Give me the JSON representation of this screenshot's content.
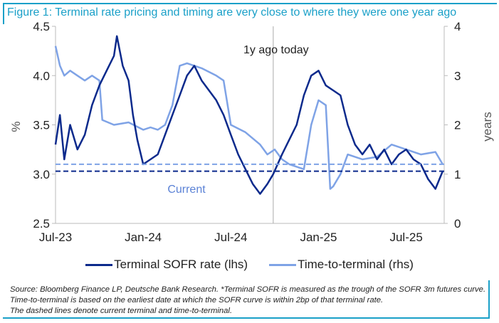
{
  "title": "Figure 1: Terminal rate pricing and timing are very close to where they were one year ago",
  "chart_data": {
    "type": "line",
    "title": "Figure 1: Terminal rate pricing and timing are very close to where they were one year ago",
    "x_unit": "months since Jul-23",
    "xticks": [
      {
        "t": 0,
        "label": "Jul-23"
      },
      {
        "t": 6,
        "label": "Jan-24"
      },
      {
        "t": 12,
        "label": "Jul-24"
      },
      {
        "t": 18,
        "label": "Jan-25"
      },
      {
        "t": 24,
        "label": "Jul-25"
      }
    ],
    "xlim": [
      0,
      26.6
    ],
    "ylabel_left": "%",
    "ylim_left": [
      2.5,
      4.5
    ],
    "yticks_left": [
      "2.5",
      "3.0",
      "3.5",
      "4.0",
      "4.5"
    ],
    "ylabel_right": "years",
    "ylim_right": [
      0,
      4
    ],
    "yticks_right": [
      "0",
      "1",
      "2",
      "3",
      "4"
    ],
    "annotations": {
      "vline_t": 14.9,
      "vline_label": "1y ago today",
      "current_label": "Current"
    },
    "series": [
      {
        "name": "Terminal SOFR rate (lhs)",
        "axis": "left",
        "color": "#0c2a8c",
        "current": 3.03,
        "points": [
          [
            0,
            3.3
          ],
          [
            0.3,
            3.6
          ],
          [
            0.6,
            3.15
          ],
          [
            1,
            3.5
          ],
          [
            1.5,
            3.25
          ],
          [
            2,
            3.4
          ],
          [
            2.5,
            3.7
          ],
          [
            3,
            3.9
          ],
          [
            3.5,
            4.05
          ],
          [
            4,
            4.2
          ],
          [
            4.2,
            4.4
          ],
          [
            4.6,
            4.1
          ],
          [
            5,
            3.95
          ],
          [
            5.3,
            3.6
          ],
          [
            5.6,
            3.35
          ],
          [
            6,
            3.1
          ],
          [
            6.5,
            3.15
          ],
          [
            7,
            3.2
          ],
          [
            7.5,
            3.4
          ],
          [
            8,
            3.6
          ],
          [
            8.5,
            3.8
          ],
          [
            9,
            4.0
          ],
          [
            9.5,
            4.1
          ],
          [
            10,
            3.95
          ],
          [
            10.5,
            3.85
          ],
          [
            11,
            3.75
          ],
          [
            11.5,
            3.6
          ],
          [
            12,
            3.4
          ],
          [
            12.5,
            3.2
          ],
          [
            13,
            3.05
          ],
          [
            13.5,
            2.9
          ],
          [
            14,
            2.8
          ],
          [
            14.5,
            2.9
          ],
          [
            14.9,
            3.0
          ],
          [
            15.5,
            3.2
          ],
          [
            16,
            3.35
          ],
          [
            16.5,
            3.5
          ],
          [
            17,
            3.8
          ],
          [
            17.5,
            4.0
          ],
          [
            18,
            4.05
          ],
          [
            18.5,
            3.9
          ],
          [
            19,
            3.85
          ],
          [
            19.5,
            3.8
          ],
          [
            20,
            3.5
          ],
          [
            20.5,
            3.3
          ],
          [
            21,
            3.2
          ],
          [
            21.5,
            3.3
          ],
          [
            22,
            3.15
          ],
          [
            22.5,
            3.25
          ],
          [
            23,
            3.1
          ],
          [
            23.5,
            3.2
          ],
          [
            24,
            3.25
          ],
          [
            24.5,
            3.15
          ],
          [
            25,
            3.1
          ],
          [
            25.5,
            2.95
          ],
          [
            26,
            2.85
          ],
          [
            26.5,
            3.03
          ]
        ]
      },
      {
        "name": "Time-to-terminal (rhs)",
        "axis": "right",
        "color": "#7fa3e6",
        "current": 1.2,
        "points": [
          [
            0,
            3.6
          ],
          [
            0.3,
            3.2
          ],
          [
            0.6,
            3.0
          ],
          [
            1,
            3.1
          ],
          [
            1.5,
            3.0
          ],
          [
            2,
            2.9
          ],
          [
            2.5,
            3.0
          ],
          [
            3,
            2.9
          ],
          [
            3.2,
            2.1
          ],
          [
            4,
            2.0
          ],
          [
            5,
            2.05
          ],
          [
            6,
            1.9
          ],
          [
            6.5,
            1.95
          ],
          [
            7,
            1.9
          ],
          [
            7.5,
            2.0
          ],
          [
            8,
            2.4
          ],
          [
            8.5,
            3.2
          ],
          [
            9,
            3.25
          ],
          [
            10,
            3.15
          ],
          [
            11,
            3.0
          ],
          [
            11.5,
            2.9
          ],
          [
            12,
            2.0
          ],
          [
            13,
            1.85
          ],
          [
            14,
            1.6
          ],
          [
            14.5,
            1.4
          ],
          [
            15,
            1.5
          ],
          [
            15.5,
            1.3
          ],
          [
            16,
            1.2
          ],
          [
            17,
            1.1
          ],
          [
            17.5,
            2.0
          ],
          [
            18,
            2.5
          ],
          [
            18.5,
            2.4
          ],
          [
            18.8,
            0.7
          ],
          [
            19,
            0.75
          ],
          [
            19.5,
            1.0
          ],
          [
            20,
            1.4
          ],
          [
            21,
            1.3
          ],
          [
            22,
            1.35
          ],
          [
            23,
            1.6
          ],
          [
            24,
            1.5
          ],
          [
            25,
            1.4
          ],
          [
            26,
            1.45
          ],
          [
            26.5,
            1.2
          ]
        ]
      }
    ]
  },
  "legend": [
    "Terminal SOFR rate (lhs)",
    "Time-to-terminal (rhs)"
  ],
  "footnote": [
    "Source: Bloomberg Finance LP, Deutsche Bank Research. *Terminal SOFR is measured as the trough of the SOFR 3m futures curve. Time-to-terminal is based on the earliest date at which the SOFR curve is within 2bp of that terminal rate.",
    "The dashed lines denote current terminal and time-to-terminal."
  ]
}
